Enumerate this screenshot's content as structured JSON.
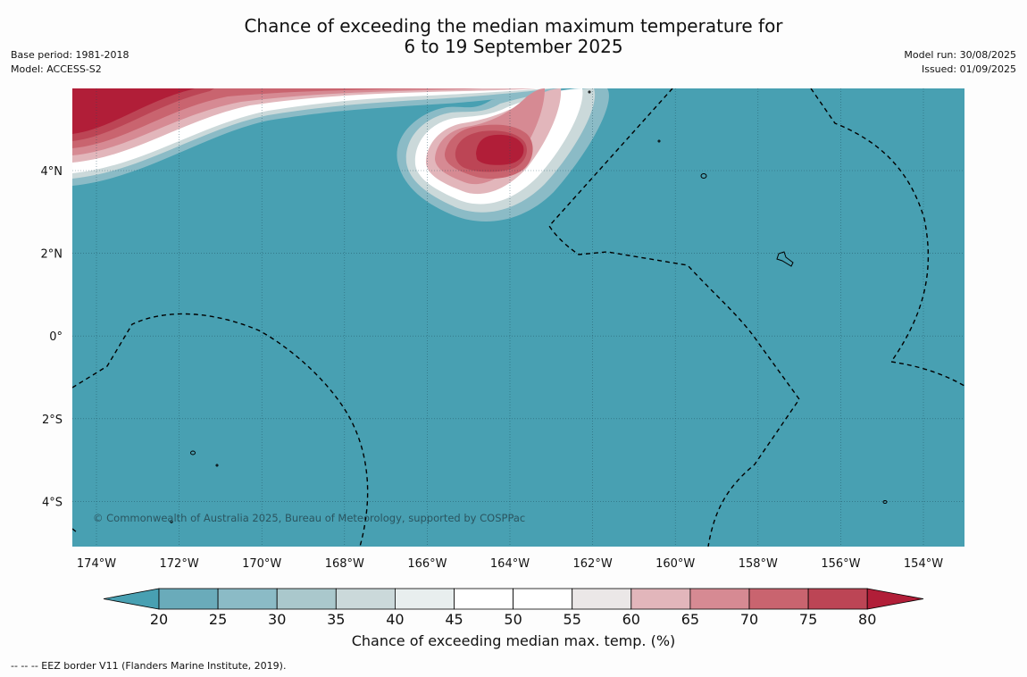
{
  "title": {
    "line1": "Chance of exceeding the median maximum temperature for",
    "line2": "6 to 19 September 2025"
  },
  "meta": {
    "base_period": "Base period: 1981-2018",
    "model": "Model: ACCESS-S2",
    "model_run": "Model run: 30/08/2025",
    "issued": "Issued: 01/09/2025"
  },
  "map": {
    "lon_labels": [
      "174°W",
      "172°W",
      "170°W",
      "168°W",
      "166°W",
      "164°W",
      "162°W",
      "160°W",
      "158°W",
      "156°W",
      "154°W"
    ],
    "lat_labels": [
      "4°N",
      "2°N",
      "0°",
      "2°S",
      "4°S"
    ],
    "copyright": "© Commonwealth of Australia 2025, Bureau of Meteorology, supported by COSPPac"
  },
  "colorbar": {
    "ticks": [
      "20",
      "25",
      "30",
      "35",
      "40",
      "45",
      "50",
      "55",
      "60",
      "65",
      "70",
      "75",
      "80"
    ],
    "colors": [
      "#48a0b2",
      "#6aabba",
      "#8bbbc6",
      "#aac8cc",
      "#cbd9da",
      "#e8eeee",
      "#ffffff",
      "#ffffff",
      "#ebe7e7",
      "#e2b6bb",
      "#d68a93",
      "#c9646f",
      "#bc4555",
      "#b11e38"
    ],
    "label": "Chance of exceeding median max. temp. (%)"
  },
  "footer": "--  --  -- EEZ border V11 (Flanders Marine Institute, 2019)."
}
